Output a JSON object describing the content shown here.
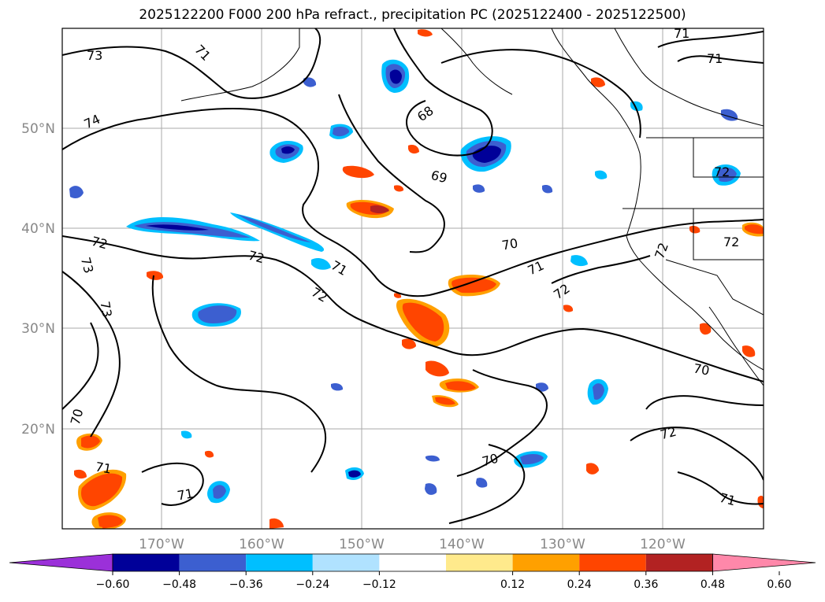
{
  "title": "2025122200 F000 200 hPa refract., precipitation PC (2025122400 - 2025122500)",
  "axes": {
    "lat_labels": [
      "50°N",
      "40°N",
      "30°N",
      "20°N"
    ],
    "lon_labels": [
      "170°W",
      "160°W",
      "150°W",
      "140°W",
      "130°W",
      "120°W"
    ]
  },
  "contour_labels": [
    "73",
    "71",
    "71",
    "71",
    "74",
    "68",
    "69",
    "72",
    "72",
    "71",
    "70",
    "71",
    "72",
    "73",
    "73",
    "72",
    "72",
    "72",
    "70",
    "70",
    "70",
    "72",
    "71",
    "71",
    "71",
    "72"
  ],
  "colorbar": {
    "colors": [
      "#9b30d9",
      "#000099",
      "#3c5fd0",
      "#00bfff",
      "#b0e2ff",
      "#ffffff",
      "#ffea8c",
      "#ffa000",
      "#ff4500",
      "#b22222",
      "#ff88aa"
    ],
    "ticks": [
      "−0.60",
      "−0.48",
      "−0.36",
      "−0.24",
      "−0.12",
      "0.12",
      "0.24",
      "0.36",
      "0.48",
      "0.60"
    ]
  },
  "map_colors": {
    "gridline": "#aaaaaa",
    "contour": "#000000",
    "coast": "#000000"
  }
}
